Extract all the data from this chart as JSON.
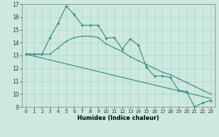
{
  "x": [
    0,
    1,
    2,
    3,
    4,
    5,
    6,
    7,
    8,
    9,
    10,
    11,
    12,
    13,
    14,
    15,
    16,
    17,
    18,
    19,
    20,
    21,
    22,
    23
  ],
  "line1": [
    13.1,
    13.1,
    13.1,
    14.4,
    15.5,
    16.85,
    16.2,
    15.35,
    15.35,
    15.35,
    14.35,
    14.4,
    13.5,
    14.3,
    13.8,
    12.1,
    11.4,
    11.4,
    11.3,
    10.3,
    10.2,
    9.0,
    9.3,
    9.5
  ],
  "line2": [
    13.1,
    13.1,
    13.1,
    13.1,
    13.6,
    14.1,
    14.4,
    14.5,
    14.5,
    14.4,
    13.9,
    13.6,
    13.3,
    12.9,
    12.6,
    12.3,
    12.0,
    11.7,
    11.5,
    11.2,
    10.9,
    10.6,
    10.3,
    10.0
  ],
  "line3": [
    13.1,
    12.95,
    12.8,
    12.65,
    12.5,
    12.35,
    12.2,
    12.05,
    11.9,
    11.75,
    11.6,
    11.45,
    11.3,
    11.15,
    11.0,
    10.85,
    10.7,
    10.55,
    10.4,
    10.25,
    10.1,
    9.95,
    9.8,
    9.65
  ],
  "line_color": "#2e8b74",
  "bg_color": "#cce8e0",
  "grid_color": "#aad4c8",
  "xlabel": "Humidex (Indice chaleur)",
  "ylim": [
    9,
    17
  ],
  "xlim": [
    -0.5,
    23.5
  ],
  "yticks": [
    9,
    10,
    11,
    12,
    13,
    14,
    15,
    16,
    17
  ],
  "xticks": [
    0,
    1,
    2,
    3,
    4,
    5,
    6,
    7,
    8,
    9,
    10,
    11,
    12,
    13,
    14,
    15,
    16,
    17,
    18,
    19,
    20,
    21,
    22,
    23
  ],
  "tick_fontsize": 5.0,
  "xlabel_fontsize": 6.0,
  "ytick_fontsize": 5.5
}
